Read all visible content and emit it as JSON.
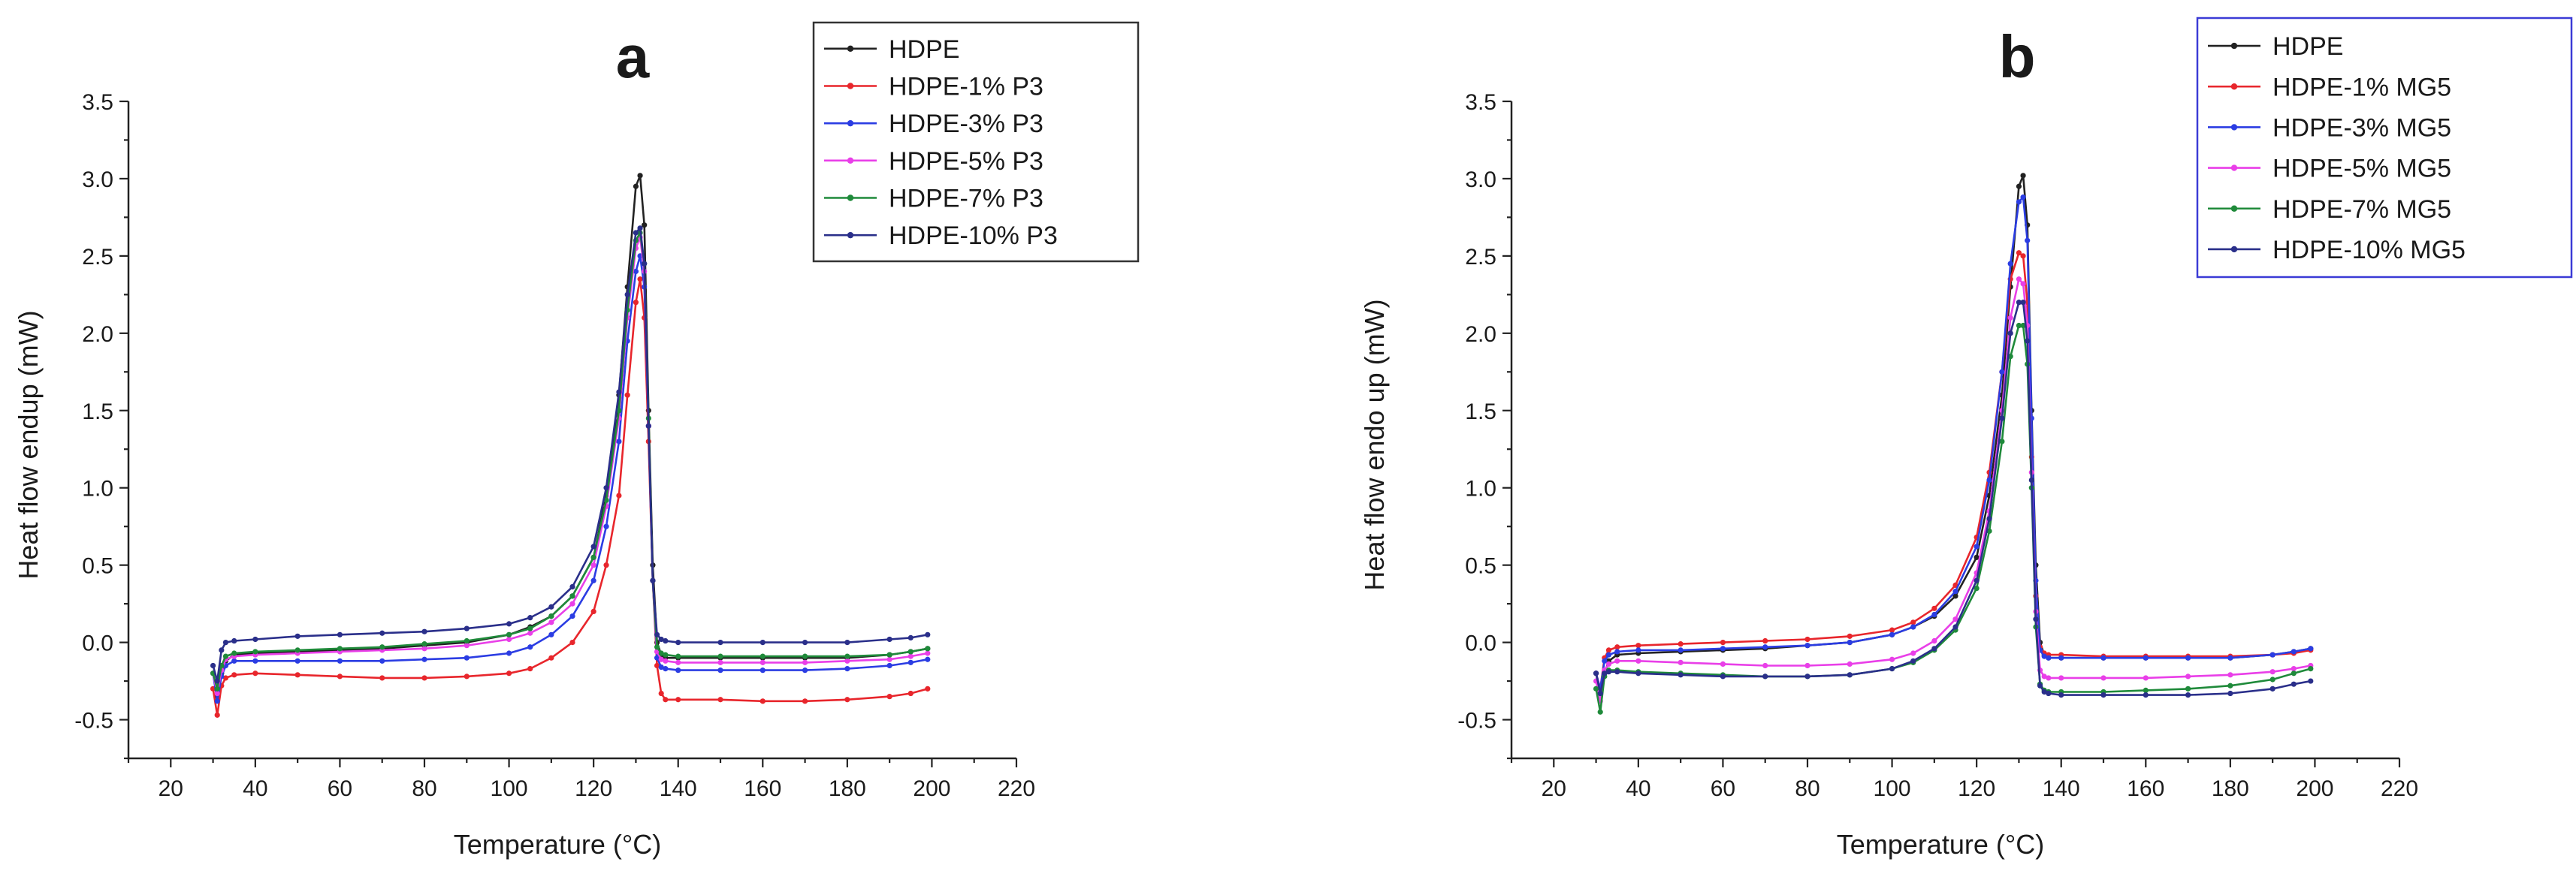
{
  "figure": {
    "charts": [
      {
        "panel_label": "a",
        "legend_border_color": "#333333",
        "chart_data": {
          "type": "line",
          "title": "a",
          "xlabel": "Temperature (°C)",
          "ylabel": "Heat flow endup (mW)",
          "xlim": [
            10,
            220
          ],
          "ylim": [
            -0.75,
            3.5
          ],
          "xticks": [
            20,
            40,
            60,
            80,
            100,
            120,
            140,
            160,
            180,
            200,
            220
          ],
          "yticks": [
            -0.5,
            0.0,
            0.5,
            1.0,
            1.5,
            2.0,
            2.5,
            3.0,
            3.5
          ],
          "ytick_labels": [
            "-0.5",
            "0.0",
            "0.5",
            "1.0",
            "1.5",
            "2.0",
            "2.5",
            "3.0",
            "3.5"
          ],
          "legend": "top-right",
          "x": [
            30,
            31,
            32,
            33,
            35,
            40,
            50,
            60,
            70,
            80,
            90,
            100,
            105,
            110,
            115,
            120,
            123,
            126,
            128,
            130,
            131,
            132,
            133,
            134,
            135,
            136,
            137,
            140,
            150,
            160,
            170,
            180,
            190,
            195,
            199
          ],
          "series": [
            {
              "name": "HDPE",
              "color": "#222222",
              "values": [
                -0.2,
                -0.35,
                -0.2,
                -0.12,
                -0.08,
                -0.07,
                -0.06,
                -0.05,
                -0.04,
                -0.02,
                0.0,
                0.05,
                0.1,
                0.17,
                0.3,
                0.55,
                0.95,
                1.6,
                2.3,
                2.95,
                3.02,
                2.7,
                1.5,
                0.5,
                0.0,
                -0.08,
                -0.1,
                -0.1,
                -0.1,
                -0.1,
                -0.1,
                -0.1,
                -0.08,
                -0.06,
                -0.04
              ]
            },
            {
              "name": "HDPE-1% P3",
              "color": "#e8262c",
              "values": [
                -0.3,
                -0.47,
                -0.28,
                -0.23,
                -0.21,
                -0.2,
                -0.21,
                -0.22,
                -0.23,
                -0.23,
                -0.22,
                -0.2,
                -0.17,
                -0.1,
                0.0,
                0.2,
                0.5,
                0.95,
                1.6,
                2.2,
                2.35,
                2.1,
                1.3,
                0.4,
                -0.15,
                -0.33,
                -0.37,
                -0.37,
                -0.37,
                -0.38,
                -0.38,
                -0.37,
                -0.35,
                -0.33,
                -0.3
              ]
            },
            {
              "name": "HDPE-3% P3",
              "color": "#2b3de3",
              "values": [
                -0.2,
                -0.38,
                -0.22,
                -0.15,
                -0.12,
                -0.12,
                -0.12,
                -0.12,
                -0.12,
                -0.11,
                -0.1,
                -0.07,
                -0.03,
                0.05,
                0.17,
                0.4,
                0.75,
                1.3,
                1.95,
                2.4,
                2.5,
                2.3,
                1.4,
                0.4,
                -0.1,
                -0.16,
                -0.17,
                -0.18,
                -0.18,
                -0.18,
                -0.18,
                -0.17,
                -0.15,
                -0.13,
                -0.11
              ]
            },
            {
              "name": "HDPE-5% P3",
              "color": "#e93fe8",
              "values": [
                -0.2,
                -0.33,
                -0.18,
                -0.11,
                -0.09,
                -0.08,
                -0.07,
                -0.06,
                -0.05,
                -0.04,
                -0.02,
                0.02,
                0.06,
                0.13,
                0.25,
                0.5,
                0.88,
                1.45,
                2.1,
                2.55,
                2.62,
                2.4,
                1.4,
                0.4,
                -0.06,
                -0.11,
                -0.12,
                -0.13,
                -0.13,
                -0.13,
                -0.13,
                -0.12,
                -0.11,
                -0.09,
                -0.07
              ]
            },
            {
              "name": "HDPE-7% P3",
              "color": "#1f8a3a",
              "values": [
                -0.2,
                -0.3,
                -0.15,
                -0.09,
                -0.07,
                -0.06,
                -0.05,
                -0.04,
                -0.03,
                -0.01,
                0.01,
                0.05,
                0.09,
                0.17,
                0.3,
                0.55,
                0.92,
                1.5,
                2.15,
                2.6,
                2.65,
                2.45,
                1.45,
                0.4,
                -0.03,
                -0.07,
                -0.08,
                -0.09,
                -0.09,
                -0.09,
                -0.09,
                -0.09,
                -0.08,
                -0.06,
                -0.04
              ]
            },
            {
              "name": "HDPE-10% P3",
              "color": "#2a2f8a",
              "values": [
                -0.15,
                -0.25,
                -0.05,
                0.0,
                0.01,
                0.02,
                0.04,
                0.05,
                0.06,
                0.07,
                0.09,
                0.12,
                0.16,
                0.23,
                0.36,
                0.62,
                1.0,
                1.62,
                2.25,
                2.65,
                2.68,
                2.45,
                1.4,
                0.4,
                0.05,
                0.02,
                0.01,
                0.0,
                0.0,
                0.0,
                0.0,
                0.0,
                0.02,
                0.03,
                0.05
              ]
            }
          ]
        }
      },
      {
        "panel_label": "b",
        "legend_border_color": "#3b3bd6",
        "chart_data": {
          "type": "line",
          "title": "b",
          "xlabel": "Temperature (°C)",
          "ylabel": "Heat flow endo up (mW)",
          "xlim": [
            10,
            220
          ],
          "ylim": [
            -0.75,
            3.5
          ],
          "xticks": [
            20,
            40,
            60,
            80,
            100,
            120,
            140,
            160,
            180,
            200,
            220
          ],
          "yticks": [
            -0.5,
            0.0,
            0.5,
            1.0,
            1.5,
            2.0,
            2.5,
            3.0,
            3.5
          ],
          "ytick_labels": [
            "-0.5",
            "0.0",
            "0.5",
            "1.0",
            "1.5",
            "2.0",
            "2.5",
            "3.0",
            "3.5"
          ],
          "legend": "top-right",
          "x": [
            30,
            31,
            32,
            33,
            35,
            40,
            50,
            60,
            70,
            80,
            90,
            100,
            105,
            110,
            115,
            120,
            123,
            126,
            128,
            130,
            131,
            132,
            133,
            134,
            135,
            136,
            137,
            140,
            150,
            160,
            170,
            180,
            190,
            195,
            199
          ],
          "series": [
            {
              "name": "HDPE",
              "color": "#222222",
              "values": [
                -0.2,
                -0.35,
                -0.2,
                -0.12,
                -0.08,
                -0.07,
                -0.06,
                -0.05,
                -0.04,
                -0.02,
                0.0,
                0.05,
                0.1,
                0.17,
                0.3,
                0.55,
                0.95,
                1.6,
                2.3,
                2.95,
                3.02,
                2.7,
                1.5,
                0.5,
                0.0,
                -0.08,
                -0.1,
                -0.1,
                -0.1,
                -0.1,
                -0.1,
                -0.1,
                -0.08,
                -0.06,
                -0.04
              ]
            },
            {
              "name": "HDPE-1% MG5",
              "color": "#e8262c",
              "values": [
                -0.2,
                -0.3,
                -0.1,
                -0.05,
                -0.03,
                -0.02,
                -0.01,
                0.0,
                0.01,
                0.02,
                0.04,
                0.08,
                0.13,
                0.22,
                0.37,
                0.68,
                1.1,
                1.75,
                2.35,
                2.52,
                2.5,
                2.2,
                1.2,
                0.3,
                -0.03,
                -0.07,
                -0.08,
                -0.08,
                -0.09,
                -0.09,
                -0.09,
                -0.09,
                -0.08,
                -0.07,
                -0.05
              ]
            },
            {
              "name": "HDPE-3% MG5",
              "color": "#2b3de3",
              "values": [
                -0.2,
                -0.3,
                -0.12,
                -0.08,
                -0.06,
                -0.05,
                -0.05,
                -0.04,
                -0.03,
                -0.02,
                0.0,
                0.05,
                0.1,
                0.18,
                0.33,
                0.62,
                1.05,
                1.75,
                2.45,
                2.85,
                2.88,
                2.6,
                1.45,
                0.4,
                -0.05,
                -0.09,
                -0.1,
                -0.1,
                -0.1,
                -0.1,
                -0.1,
                -0.1,
                -0.08,
                -0.06,
                -0.04
              ]
            },
            {
              "name": "HDPE-5% MG5",
              "color": "#e93fe8",
              "values": [
                -0.25,
                -0.38,
                -0.18,
                -0.14,
                -0.12,
                -0.12,
                -0.13,
                -0.14,
                -0.15,
                -0.15,
                -0.14,
                -0.11,
                -0.07,
                0.01,
                0.15,
                0.45,
                0.85,
                1.5,
                2.1,
                2.35,
                2.32,
                2.05,
                1.1,
                0.2,
                -0.18,
                -0.22,
                -0.23,
                -0.23,
                -0.23,
                -0.23,
                -0.22,
                -0.21,
                -0.19,
                -0.17,
                -0.15
              ]
            },
            {
              "name": "HDPE-7% MG5",
              "color": "#1f8a3a",
              "values": [
                -0.3,
                -0.45,
                -0.22,
                -0.18,
                -0.18,
                -0.19,
                -0.2,
                -0.21,
                -0.22,
                -0.22,
                -0.21,
                -0.17,
                -0.13,
                -0.05,
                0.08,
                0.35,
                0.72,
                1.3,
                1.85,
                2.05,
                2.05,
                1.8,
                1.0,
                0.1,
                -0.27,
                -0.31,
                -0.32,
                -0.32,
                -0.32,
                -0.31,
                -0.3,
                -0.28,
                -0.24,
                -0.2,
                -0.17
              ]
            },
            {
              "name": "HDPE-10% MG5",
              "color": "#2a2f8a",
              "values": [
                -0.2,
                -0.33,
                -0.2,
                -0.19,
                -0.19,
                -0.2,
                -0.21,
                -0.22,
                -0.22,
                -0.22,
                -0.21,
                -0.17,
                -0.12,
                -0.04,
                0.1,
                0.4,
                0.8,
                1.45,
                2.0,
                2.2,
                2.2,
                1.95,
                1.05,
                0.15,
                -0.28,
                -0.32,
                -0.33,
                -0.34,
                -0.34,
                -0.34,
                -0.34,
                -0.33,
                -0.3,
                -0.27,
                -0.25
              ]
            }
          ]
        }
      }
    ]
  }
}
